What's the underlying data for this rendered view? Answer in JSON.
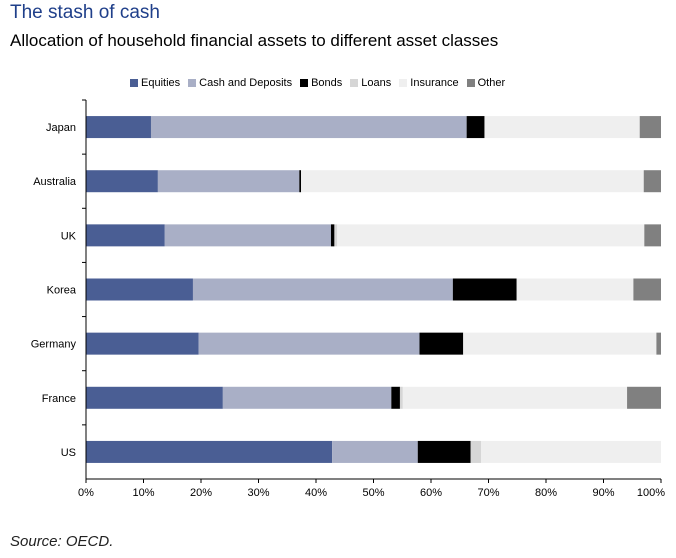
{
  "header": {
    "title": "The stash of cash",
    "subtitle": "Allocation of household financial assets to different asset classes"
  },
  "footer": {
    "source": "Source: OECD."
  },
  "chart_data": {
    "type": "bar",
    "orientation": "horizontal",
    "stacked": true,
    "categories": [
      "Japan",
      "Australia",
      "UK",
      "Korea",
      "Germany",
      "France",
      "US"
    ],
    "series": [
      {
        "name": "Equities",
        "color": "#4a5e94",
        "values": [
          11.3,
          12.5,
          13.7,
          18.6,
          19.6,
          23.8,
          42.8
        ]
      },
      {
        "name": "Cash and Deposits",
        "color": "#a9afc6",
        "values": [
          54.9,
          24.6,
          28.9,
          45.2,
          38.4,
          29.3,
          14.9
        ]
      },
      {
        "name": "Bonds",
        "color": "#000000",
        "values": [
          3.1,
          0.3,
          0.6,
          11.1,
          7.6,
          1.5,
          9.2
        ]
      },
      {
        "name": "Loans",
        "color": "#d6d6d6",
        "values": [
          0,
          0,
          0.5,
          0,
          0,
          0.5,
          1.8
        ]
      },
      {
        "name": "Insurance",
        "color": "#efefef",
        "values": [
          27.0,
          59.6,
          53.4,
          20.3,
          33.6,
          39.0,
          31.3
        ]
      },
      {
        "name": "Other",
        "color": "#808080",
        "values": [
          3.7,
          3.0,
          2.9,
          4.8,
          0.8,
          5.9,
          0.0
        ]
      }
    ],
    "xaxis": {
      "ticks": [
        0,
        10,
        20,
        30,
        40,
        50,
        60,
        70,
        80,
        90,
        100
      ],
      "tick_labels": [
        "0%",
        "10%",
        "20%",
        "30%",
        "40%",
        "50%",
        "60%",
        "70%",
        "80%",
        "90%",
        "100%"
      ],
      "range": [
        0,
        100
      ]
    },
    "xlabel": "",
    "ylabel": "",
    "legend_position": "top",
    "grid": false
  }
}
